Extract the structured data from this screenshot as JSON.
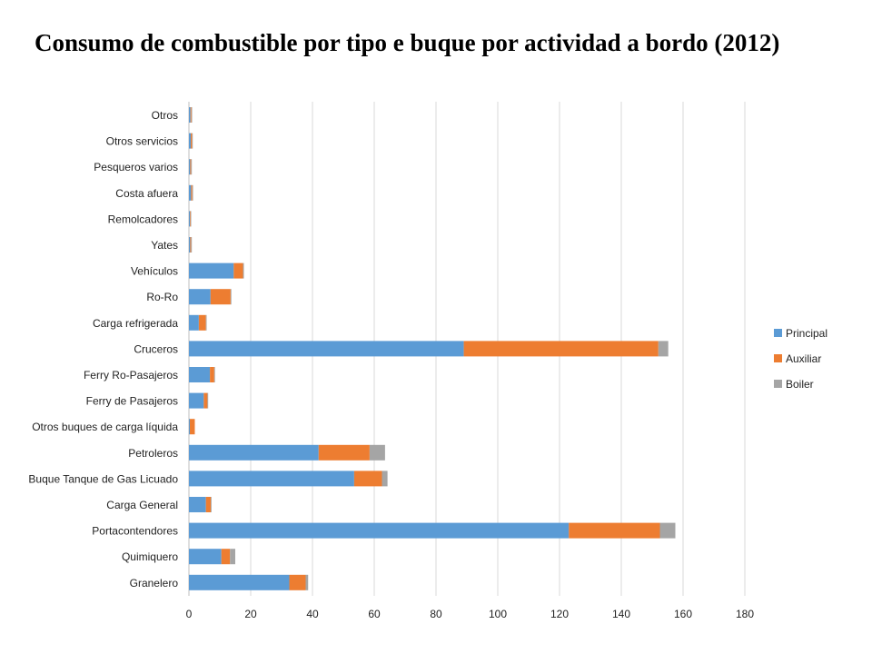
{
  "title": "Consumo de combustible por tipo e buque por actividad a bordo (2012)",
  "chart_data": {
    "type": "bar",
    "orientation": "horizontal",
    "stacked": true,
    "title": "Consumo de combustible por tipo e buque por actividad a bordo (2012)",
    "xlabel": "",
    "ylabel": "",
    "xlim": [
      0,
      180
    ],
    "xticks": [
      "0",
      "20",
      "40",
      "60",
      "80",
      "100",
      "120",
      "140",
      "160",
      "180"
    ],
    "grid": true,
    "legend_position": "right",
    "categories": [
      "Otros",
      "Otros servicios",
      "Pesqueros varios",
      "Costa afuera",
      "Remolcadores",
      "Yates",
      "Vehículos",
      "Ro-Ro",
      "Carga refrigerada",
      "Cruceros",
      "Ferry Ro-Pasajeros",
      "Ferry de Pasajeros",
      "Otros buques de carga líquida",
      "Petroleros",
      "Buque Tanque de Gas Licuado",
      "Carga General",
      "Portacontendores",
      "Quimiquero",
      "Granelero"
    ],
    "series": [
      {
        "name": "Principal",
        "color": "#5b9bd5",
        "values": [
          0.5,
          0.6,
          0.4,
          0.7,
          0.3,
          0.4,
          14.5,
          7,
          3.2,
          89,
          6.8,
          4.8,
          0.3,
          42,
          53.5,
          5.5,
          123,
          10.5,
          32.5
        ]
      },
      {
        "name": "Auxiliar",
        "color": "#ed7d31",
        "values": [
          0.3,
          0.4,
          0.3,
          0.4,
          0.2,
          0.3,
          3,
          6.5,
          2.3,
          63,
          1.4,
          1.2,
          1.6,
          16.5,
          9,
          1.6,
          29.5,
          2.8,
          5.3
        ]
      },
      {
        "name": "Boiler",
        "color": "#a5a5a5",
        "values": [
          0.1,
          0.1,
          0.1,
          0.1,
          0.1,
          0.1,
          0.3,
          0.2,
          0.2,
          3.2,
          0.1,
          0.1,
          0,
          5,
          1.8,
          0.1,
          5,
          1.7,
          0.8
        ]
      }
    ]
  }
}
